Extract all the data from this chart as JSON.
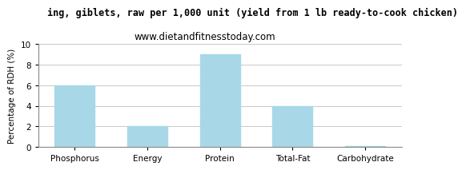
{
  "title_line1": "ing, giblets, raw per 1,000 unit (yield from 1 lb ready-to-cook chicken)",
  "title_line2": "www.dietandfitnesstoday.com",
  "categories": [
    "Phosphorus",
    "Energy",
    "Protein",
    "Total-Fat",
    "Carbohydrate"
  ],
  "values": [
    6.0,
    2.0,
    9.0,
    4.0,
    0.1
  ],
  "bar_color": "#a8d8e8",
  "ylabel": "Percentage of RDH (%)",
  "ylim": [
    0,
    10
  ],
  "yticks": [
    0,
    2,
    4,
    6,
    8,
    10
  ],
  "background_color": "#ffffff",
  "grid_color": "#c8c8c8",
  "title_fontsize": 8.5,
  "subtitle_fontsize": 8.5,
  "ylabel_fontsize": 7.5,
  "tick_fontsize": 7.5,
  "bar_width": 0.55,
  "title_color": "#000000",
  "subtitle_color": "#000000"
}
